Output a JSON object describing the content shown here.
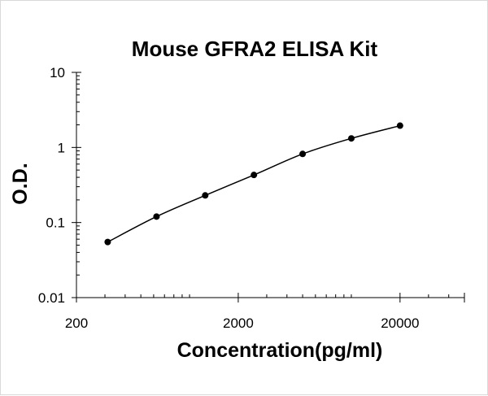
{
  "chart_data": {
    "type": "scatter",
    "title": "Mouse GFRA2 ELISA Kit",
    "xlabel": "Concentration(pg/ml)",
    "ylabel": "O.D.",
    "x_scale": "log",
    "y_scale": "log",
    "xlim": [
      200,
      50000
    ],
    "ylim": [
      0.01,
      10
    ],
    "x_ticks": [
      {
        "value": 200,
        "label": "200"
      },
      {
        "value": 2000,
        "label": "2000"
      },
      {
        "value": 20000,
        "label": "20000"
      }
    ],
    "y_ticks": [
      {
        "value": 0.01,
        "label": "0.01"
      },
      {
        "value": 0.1,
        "label": "0.1"
      },
      {
        "value": 1,
        "label": "1"
      },
      {
        "value": 10,
        "label": "10"
      }
    ],
    "grid": false,
    "legend": "none",
    "series": [
      {
        "x": [
          312,
          625,
          1250,
          2500,
          5000,
          10000,
          20000
        ],
        "y": [
          0.055,
          0.12,
          0.23,
          0.43,
          0.82,
          1.32,
          1.95
        ],
        "marker_color": "#000000",
        "line_color": "#000000",
        "fit": "smooth curve"
      }
    ]
  }
}
